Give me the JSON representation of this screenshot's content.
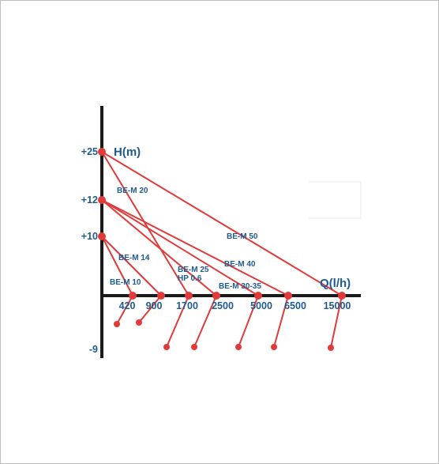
{
  "chart_data": {
    "type": "line",
    "title": "",
    "xlabel": "Q(l/h)",
    "ylabel": "H(m)",
    "x_tick_labels": [
      "420",
      "900",
      "1700",
      "2500",
      "5000",
      "6500",
      "15000"
    ],
    "y_tick_labels": [
      "+25",
      "+12",
      "+10",
      "-9"
    ],
    "ylim": [
      -9,
      25
    ],
    "grid": false,
    "series": [
      {
        "label": "BE-M 10",
        "h0": 10,
        "q_max": "420",
        "h_suction": -9
      },
      {
        "label": "BE-M 14",
        "h0": 10,
        "q_max": "900",
        "h_suction": -9
      },
      {
        "label": "BE-M 20",
        "h0": 25,
        "q_max": "1700",
        "h_suction": -9
      },
      {
        "label": "BE-M 25",
        "h0": 12,
        "q_max": "2500",
        "h_suction": -9
      },
      {
        "label": "BE-M 30-35",
        "h0": 12,
        "q_max": "5000",
        "h_suction": -9
      },
      {
        "label": "BE-M 40",
        "h0": 12,
        "q_max": "6500",
        "h_suction": -9
      },
      {
        "label": "BE-M 50",
        "h0": 25,
        "q_max": "15000",
        "h_suction": -9
      }
    ],
    "extra_labels": [
      "HP 0.6"
    ],
    "colors": {
      "curve": "#e03a3a",
      "axis": "#1a1a1a",
      "text": "#1f5a8f"
    }
  }
}
